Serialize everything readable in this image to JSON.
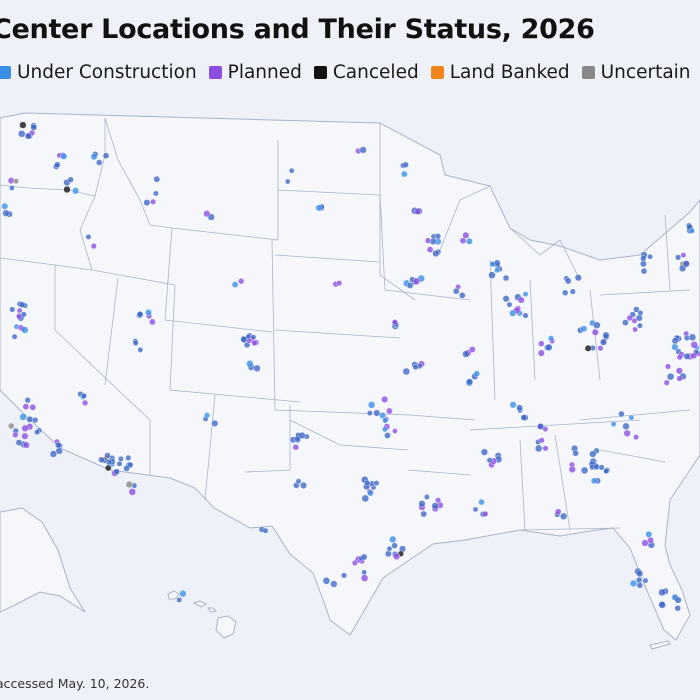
{
  "title": "Center Locations and Their Status, 2026",
  "legend": [
    {
      "label": "Under Construction",
      "color": "#3a8ee6"
    },
    {
      "label": "Planned",
      "color": "#8b4de0"
    },
    {
      "label": "Canceled",
      "color": "#111111"
    },
    {
      "label": "Land Banked",
      "color": "#f0851b"
    },
    {
      "label": "Uncertain",
      "color": "#888888"
    }
  ],
  "map": {
    "land_color": "#f6f7fb",
    "border_color": "#a9b4c8",
    "operating_color": "#3c67c4"
  },
  "footnote": "accessed May. 10, 2026."
}
